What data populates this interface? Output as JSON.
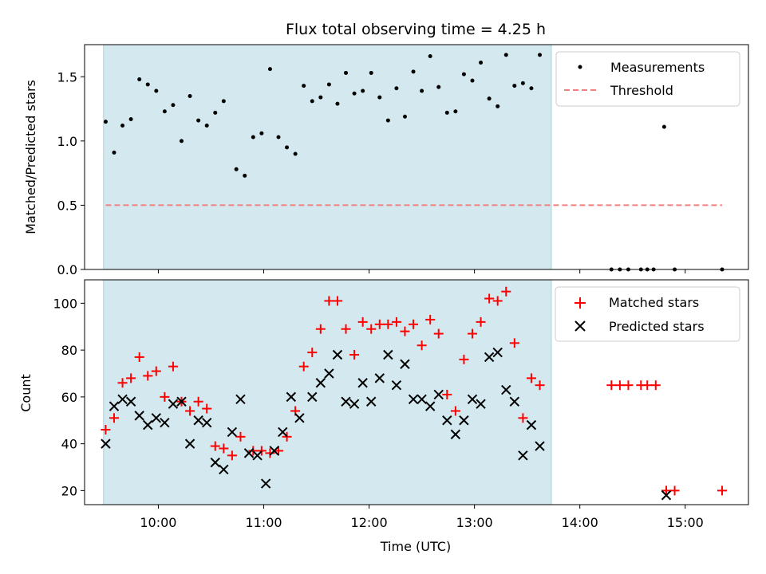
{
  "chart_data": {
    "title": "Flux total observing time = 4.25 h",
    "xlabel": "Time (UTC)",
    "x_unit": "hours UTC",
    "xlim": [
      9.3,
      15.6
    ],
    "xticks": [
      {
        "value": 10,
        "label": "10:00"
      },
      {
        "value": 11,
        "label": "11:00"
      },
      {
        "value": 12,
        "label": "12:00"
      },
      {
        "value": 13,
        "label": "13:00"
      },
      {
        "value": 14,
        "label": "14:00"
      },
      {
        "value": 15,
        "label": "15:00"
      }
    ],
    "shaded_interval": [
      9.48,
      13.73
    ],
    "shade_color": "#d3e9ef",
    "panels": [
      {
        "type": "scatter",
        "ylabel": "Matched/Predicted stars",
        "ylim": [
          0,
          1.75
        ],
        "yticks": [
          {
            "value": 0,
            "label": "0.0"
          },
          {
            "value": 0.5,
            "label": "0.5"
          },
          {
            "value": 1.0,
            "label": "1.0"
          },
          {
            "value": 1.5,
            "label": "1.5"
          }
        ],
        "legend_position": "top-right",
        "series": [
          {
            "name": "Measurements",
            "marker": "dot",
            "color": "#000000",
            "points": [
              [
                9.5,
                1.15
              ],
              [
                9.58,
                0.91
              ],
              [
                9.66,
                1.12
              ],
              [
                9.74,
                1.17
              ],
              [
                9.82,
                1.48
              ],
              [
                9.9,
                1.44
              ],
              [
                9.98,
                1.39
              ],
              [
                10.06,
                1.23
              ],
              [
                10.14,
                1.28
              ],
              [
                10.22,
                1.0
              ],
              [
                10.3,
                1.35
              ],
              [
                10.38,
                1.16
              ],
              [
                10.46,
                1.12
              ],
              [
                10.54,
                1.22
              ],
              [
                10.62,
                1.31
              ],
              [
                10.74,
                0.78
              ],
              [
                10.82,
                0.73
              ],
              [
                10.9,
                1.03
              ],
              [
                10.98,
                1.06
              ],
              [
                11.06,
                1.56
              ],
              [
                11.14,
                1.03
              ],
              [
                11.22,
                0.95
              ],
              [
                11.3,
                0.9
              ],
              [
                11.38,
                1.43
              ],
              [
                11.46,
                1.31
              ],
              [
                11.54,
                1.34
              ],
              [
                11.62,
                1.44
              ],
              [
                11.7,
                1.29
              ],
              [
                11.78,
                1.53
              ],
              [
                11.86,
                1.37
              ],
              [
                11.94,
                1.39
              ],
              [
                12.02,
                1.53
              ],
              [
                12.1,
                1.34
              ],
              [
                12.18,
                1.16
              ],
              [
                12.26,
                1.41
              ],
              [
                12.34,
                1.19
              ],
              [
                12.42,
                1.54
              ],
              [
                12.5,
                1.39
              ],
              [
                12.58,
                1.66
              ],
              [
                12.66,
                1.42
              ],
              [
                12.74,
                1.22
              ],
              [
                12.82,
                1.23
              ],
              [
                12.9,
                1.52
              ],
              [
                12.98,
                1.47
              ],
              [
                13.06,
                1.61
              ],
              [
                13.14,
                1.33
              ],
              [
                13.22,
                1.27
              ],
              [
                13.3,
                1.67
              ],
              [
                13.38,
                1.43
              ],
              [
                13.46,
                1.45
              ],
              [
                13.54,
                1.41
              ],
              [
                13.62,
                1.67
              ],
              [
                14.3,
                0
              ],
              [
                14.38,
                0
              ],
              [
                14.46,
                0
              ],
              [
                14.58,
                0
              ],
              [
                14.64,
                0
              ],
              [
                14.7,
                0
              ],
              [
                14.8,
                1.11
              ],
              [
                14.9,
                0
              ],
              [
                15.35,
                0
              ]
            ]
          },
          {
            "name": "Threshold",
            "style": "dashed",
            "color": "#f08080",
            "x": [
              9.5,
              15.35
            ],
            "y": [
              0.5,
              0.5
            ]
          }
        ]
      },
      {
        "type": "scatter",
        "ylabel": "Count",
        "ylim": [
          14,
          110
        ],
        "yticks": [
          {
            "value": 20,
            "label": "20"
          },
          {
            "value": 40,
            "label": "40"
          },
          {
            "value": 60,
            "label": "60"
          },
          {
            "value": 80,
            "label": "80"
          },
          {
            "value": 100,
            "label": "100"
          }
        ],
        "legend_position": "top-right",
        "series": [
          {
            "name": "Matched stars",
            "marker": "plus",
            "color": "#ff0000",
            "points": [
              [
                9.5,
                46
              ],
              [
                9.58,
                51
              ],
              [
                9.66,
                66
              ],
              [
                9.74,
                68
              ],
              [
                9.82,
                77
              ],
              [
                9.9,
                69
              ],
              [
                9.98,
                71
              ],
              [
                10.06,
                60
              ],
              [
                10.14,
                73
              ],
              [
                10.22,
                58
              ],
              [
                10.3,
                54
              ],
              [
                10.38,
                58
              ],
              [
                10.46,
                55
              ],
              [
                10.54,
                39
              ],
              [
                10.62,
                38
              ],
              [
                10.7,
                35
              ],
              [
                10.78,
                43
              ],
              [
                10.9,
                37
              ],
              [
                10.98,
                37
              ],
              [
                11.06,
                36
              ],
              [
                11.14,
                37
              ],
              [
                11.22,
                43
              ],
              [
                11.3,
                54
              ],
              [
                11.38,
                73
              ],
              [
                11.46,
                79
              ],
              [
                11.54,
                89
              ],
              [
                11.62,
                101
              ],
              [
                11.7,
                101
              ],
              [
                11.78,
                89
              ],
              [
                11.86,
                78
              ],
              [
                11.94,
                92
              ],
              [
                12.02,
                89
              ],
              [
                12.1,
                91
              ],
              [
                12.18,
                91
              ],
              [
                12.26,
                92
              ],
              [
                12.34,
                88
              ],
              [
                12.42,
                91
              ],
              [
                12.5,
                82
              ],
              [
                12.58,
                93
              ],
              [
                12.66,
                87
              ],
              [
                12.74,
                61
              ],
              [
                12.82,
                54
              ],
              [
                12.9,
                76
              ],
              [
                12.98,
                87
              ],
              [
                13.06,
                92
              ],
              [
                13.14,
                102
              ],
              [
                13.22,
                101
              ],
              [
                13.3,
                105
              ],
              [
                13.38,
                83
              ],
              [
                13.46,
                51
              ],
              [
                13.54,
                68
              ],
              [
                13.62,
                65
              ],
              [
                14.3,
                65
              ],
              [
                14.38,
                65
              ],
              [
                14.46,
                65
              ],
              [
                14.58,
                65
              ],
              [
                14.64,
                65
              ],
              [
                14.72,
                65
              ],
              [
                14.82,
                20
              ],
              [
                14.9,
                20
              ],
              [
                15.35,
                20
              ]
            ]
          },
          {
            "name": "Predicted stars",
            "marker": "x",
            "color": "#000000",
            "points": [
              [
                9.5,
                40
              ],
              [
                9.58,
                56
              ],
              [
                9.66,
                59
              ],
              [
                9.74,
                58
              ],
              [
                9.82,
                52
              ],
              [
                9.9,
                48
              ],
              [
                9.98,
                51
              ],
              [
                10.06,
                49
              ],
              [
                10.14,
                57
              ],
              [
                10.22,
                58
              ],
              [
                10.3,
                40
              ],
              [
                10.38,
                50
              ],
              [
                10.46,
                49
              ],
              [
                10.54,
                32
              ],
              [
                10.62,
                29
              ],
              [
                10.7,
                45
              ],
              [
                10.78,
                59
              ],
              [
                10.86,
                36
              ],
              [
                10.94,
                35
              ],
              [
                11.02,
                23
              ],
              [
                11.1,
                37
              ],
              [
                11.18,
                45
              ],
              [
                11.26,
                60
              ],
              [
                11.34,
                51
              ],
              [
                11.46,
                60
              ],
              [
                11.54,
                66
              ],
              [
                11.62,
                70
              ],
              [
                11.7,
                78
              ],
              [
                11.78,
                58
              ],
              [
                11.86,
                57
              ],
              [
                11.94,
                66
              ],
              [
                12.02,
                58
              ],
              [
                12.1,
                68
              ],
              [
                12.18,
                78
              ],
              [
                12.26,
                65
              ],
              [
                12.34,
                74
              ],
              [
                12.42,
                59
              ],
              [
                12.5,
                59
              ],
              [
                12.58,
                56
              ],
              [
                12.66,
                61
              ],
              [
                12.74,
                50
              ],
              [
                12.82,
                44
              ],
              [
                12.9,
                50
              ],
              [
                12.98,
                59
              ],
              [
                13.06,
                57
              ],
              [
                13.14,
                77
              ],
              [
                13.22,
                79
              ],
              [
                13.3,
                63
              ],
              [
                13.38,
                58
              ],
              [
                13.46,
                35
              ],
              [
                13.54,
                48
              ],
              [
                13.62,
                39
              ],
              [
                14.82,
                18
              ]
            ]
          }
        ]
      }
    ]
  }
}
